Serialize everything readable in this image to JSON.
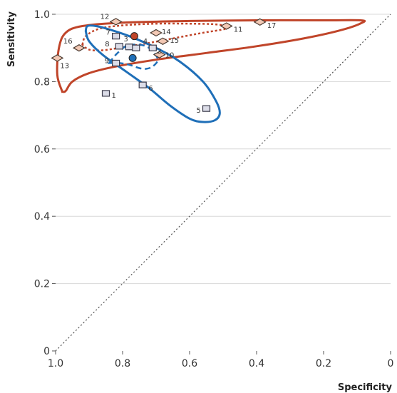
{
  "chart_data": {
    "type": "scatter",
    "xlabel": "Specificity",
    "ylabel": "Sensitivity",
    "xlim": [
      1.0,
      0.0
    ],
    "ylim": [
      0.0,
      1.0
    ],
    "x_reversed": true,
    "x_ticks": [
      "1.0",
      "0.8",
      "0.6",
      "0.4",
      "0.2",
      "0"
    ],
    "y_ticks": [
      "0",
      "0.2",
      "0.4",
      "0.6",
      "0.8",
      "1.0"
    ],
    "x_tick_values": [
      1.0,
      0.8,
      0.6,
      0.4,
      0.2,
      0.0
    ],
    "y_tick_values": [
      0.0,
      0.2,
      0.4,
      0.6,
      0.8,
      1.0
    ],
    "grid": "horizontal",
    "colors": {
      "square_fill": "#dcdde8",
      "square_stroke": "#3a3a4a",
      "diamond_fill": "#f2c8b4",
      "diamond_stroke": "#4a3a30",
      "red": "#c0452a",
      "blue": "#1f6fb8",
      "diagonal": "#555555",
      "grid": "#d8d8d8"
    },
    "series": [
      {
        "marker": "square",
        "points": [
          {
            "id": "1",
            "spec": 0.85,
            "sens": 0.765
          },
          {
            "id": "2",
            "spec": 0.71,
            "sens": 0.9
          },
          {
            "id": "3",
            "spec": 0.78,
            "sens": 0.903
          },
          {
            "id": "4",
            "spec": 0.76,
            "sens": 0.9
          },
          {
            "id": "5",
            "spec": 0.55,
            "sens": 0.72
          },
          {
            "id": "6",
            "spec": 0.74,
            "sens": 0.79
          },
          {
            "id": "7",
            "spec": 0.82,
            "sens": 0.935
          },
          {
            "id": "8",
            "spec": 0.81,
            "sens": 0.905
          },
          {
            "id": "9",
            "spec": 0.82,
            "sens": 0.855
          }
        ]
      },
      {
        "marker": "diamond",
        "points": [
          {
            "id": "10",
            "spec": 0.69,
            "sens": 0.88
          },
          {
            "id": "11",
            "spec": 0.49,
            "sens": 0.965
          },
          {
            "id": "12",
            "spec": 0.82,
            "sens": 0.978
          },
          {
            "id": "13",
            "spec": 0.995,
            "sens": 0.87
          },
          {
            "id": "14",
            "spec": 0.7,
            "sens": 0.945
          },
          {
            "id": "15",
            "spec": 0.68,
            "sens": 0.92
          },
          {
            "id": "16",
            "spec": 0.93,
            "sens": 0.9
          },
          {
            "id": "17",
            "spec": 0.39,
            "sens": 0.977
          }
        ]
      }
    ],
    "summary_points": [
      {
        "group": "red",
        "spec": 0.765,
        "sens": 0.935
      },
      {
        "group": "blue",
        "spec": 0.77,
        "sens": 0.87
      }
    ],
    "regions": [
      {
        "group": "red",
        "style": "solid",
        "points": [
          [
            0.98,
            0.77
          ],
          [
            0.995,
            0.82
          ],
          [
            0.99,
            0.9
          ],
          [
            0.97,
            0.945
          ],
          [
            0.92,
            0.965
          ],
          [
            0.8,
            0.975
          ],
          [
            0.6,
            0.98
          ],
          [
            0.4,
            0.982
          ],
          [
            0.2,
            0.982
          ],
          [
            0.09,
            0.982
          ],
          [
            0.085,
            0.975
          ],
          [
            0.14,
            0.955
          ],
          [
            0.25,
            0.93
          ],
          [
            0.4,
            0.905
          ],
          [
            0.55,
            0.885
          ],
          [
            0.7,
            0.865
          ],
          [
            0.82,
            0.845
          ],
          [
            0.9,
            0.825
          ],
          [
            0.95,
            0.8
          ],
          [
            0.97,
            0.772
          ],
          [
            0.98,
            0.77
          ]
        ]
      },
      {
        "group": "red",
        "style": "dotted",
        "points": [
          [
            0.92,
            0.91
          ],
          [
            0.91,
            0.935
          ],
          [
            0.87,
            0.957
          ],
          [
            0.8,
            0.967
          ],
          [
            0.7,
            0.972
          ],
          [
            0.6,
            0.972
          ],
          [
            0.52,
            0.97
          ],
          [
            0.485,
            0.962
          ],
          [
            0.5,
            0.955
          ],
          [
            0.56,
            0.945
          ],
          [
            0.64,
            0.93
          ],
          [
            0.72,
            0.915
          ],
          [
            0.8,
            0.902
          ],
          [
            0.86,
            0.893
          ],
          [
            0.9,
            0.895
          ],
          [
            0.92,
            0.91
          ]
        ]
      },
      {
        "group": "blue",
        "style": "solid",
        "points": [
          [
            0.91,
            0.95
          ],
          [
            0.905,
            0.965
          ],
          [
            0.88,
            0.965
          ],
          [
            0.84,
            0.955
          ],
          [
            0.78,
            0.935
          ],
          [
            0.7,
            0.9
          ],
          [
            0.63,
            0.86
          ],
          [
            0.56,
            0.8
          ],
          [
            0.52,
            0.74
          ],
          [
            0.51,
            0.705
          ],
          [
            0.525,
            0.685
          ],
          [
            0.56,
            0.68
          ],
          [
            0.6,
            0.69
          ],
          [
            0.66,
            0.73
          ],
          [
            0.72,
            0.78
          ],
          [
            0.79,
            0.83
          ],
          [
            0.86,
            0.88
          ],
          [
            0.9,
            0.92
          ],
          [
            0.91,
            0.95
          ]
        ]
      },
      {
        "group": "blue",
        "style": "dashed",
        "points": [
          [
            0.84,
            0.855
          ],
          [
            0.82,
            0.88
          ],
          [
            0.79,
            0.905
          ],
          [
            0.76,
            0.91
          ],
          [
            0.73,
            0.905
          ],
          [
            0.71,
            0.89
          ],
          [
            0.695,
            0.865
          ],
          [
            0.71,
            0.845
          ],
          [
            0.73,
            0.838
          ],
          [
            0.75,
            0.84
          ],
          [
            0.78,
            0.85
          ],
          [
            0.81,
            0.855
          ],
          [
            0.84,
            0.855
          ]
        ]
      }
    ]
  }
}
